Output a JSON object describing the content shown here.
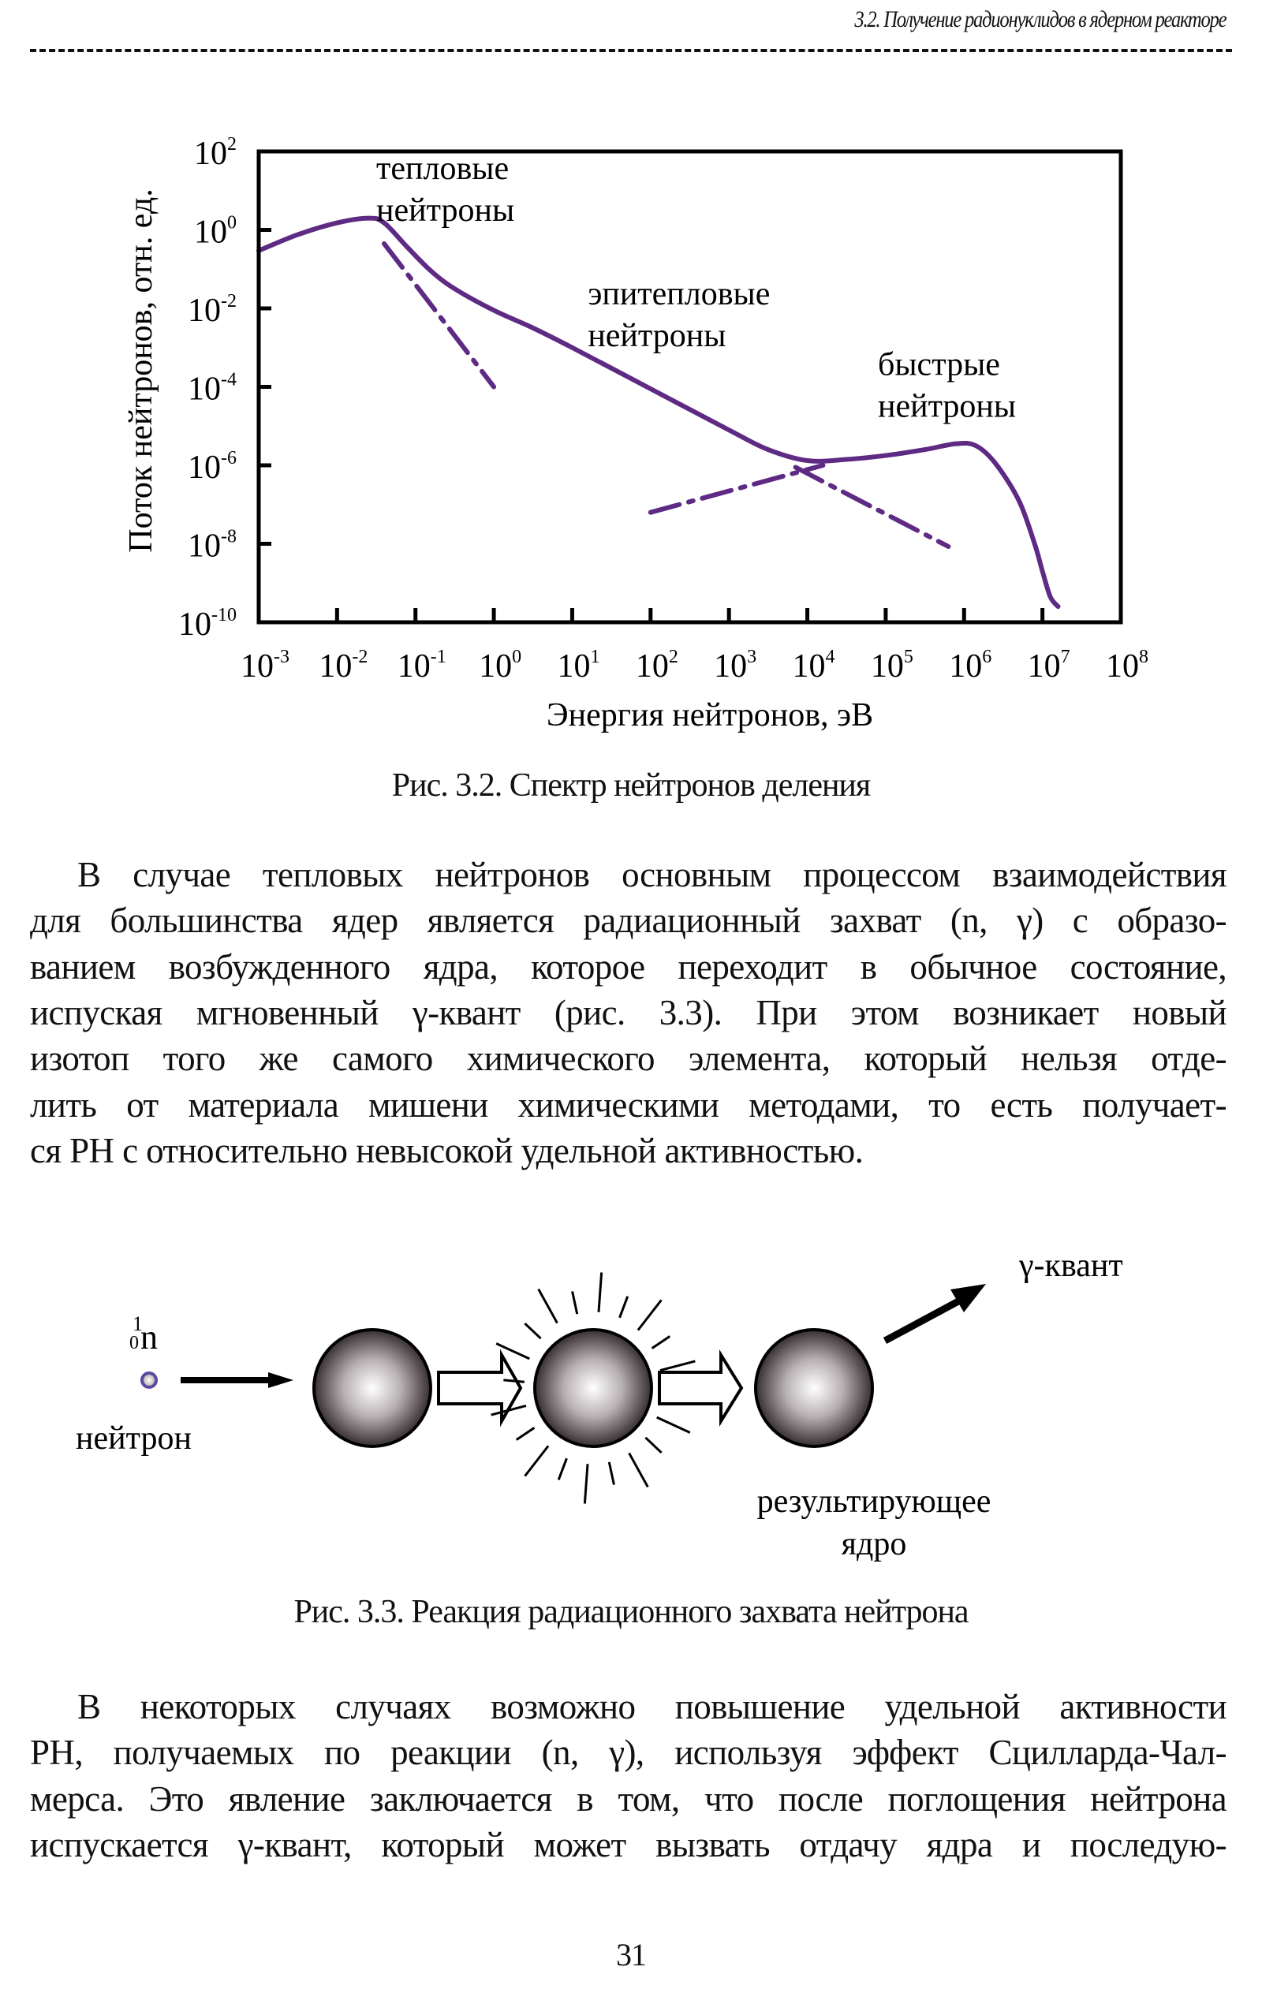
{
  "header": {
    "title": "3.2. Получение радионуклидов в ядерном реакторе"
  },
  "chart_data": {
    "type": "line",
    "title": "",
    "xlabel": "Энергия нейтронов, эВ",
    "ylabel": "Поток нейтронов, отн. ед.",
    "xscale": "log",
    "yscale": "log",
    "xlim_log10": [
      -3,
      8
    ],
    "ylim_log10": [
      -10,
      2
    ],
    "x_tick_exponents": [
      "-3",
      "-2",
      "-1",
      "0",
      "1",
      "2",
      "3",
      "4",
      "5",
      "6",
      "7",
      "8"
    ],
    "y_tick_exponents": [
      "2",
      "0",
      "-2",
      "-4",
      "-6",
      "-8",
      "-10"
    ],
    "tick_base": "10",
    "grid": false,
    "annotations": [
      {
        "lines": [
          "тепловые",
          "нейтроны"
        ],
        "at_log10": [
          -1.5,
          1.3
        ]
      },
      {
        "lines": [
          "эпитепловые",
          "нейтроны"
        ],
        "at_log10": [
          1.2,
          -1.9
        ]
      },
      {
        "lines": [
          "быстрые",
          "нейтроны"
        ],
        "at_log10": [
          4.9,
          -3.7
        ]
      }
    ],
    "series": [
      {
        "name": "spectrum",
        "style": "solid",
        "points_log10": [
          [
            -3,
            -0.53
          ],
          [
            -2.5,
            -0.12
          ],
          [
            -2,
            0.18
          ],
          [
            -1.6,
            0.3
          ],
          [
            -1.4,
            0.18
          ],
          [
            -1.1,
            -0.45
          ],
          [
            -0.8,
            -1.05
          ],
          [
            -0.5,
            -1.5
          ],
          [
            0,
            -2.05
          ],
          [
            0.5,
            -2.5
          ],
          [
            1,
            -3.0
          ],
          [
            2,
            -4.05
          ],
          [
            3,
            -5.1
          ],
          [
            3.5,
            -5.6
          ],
          [
            4,
            -5.88
          ],
          [
            4.5,
            -5.85
          ],
          [
            5,
            -5.75
          ],
          [
            5.5,
            -5.6
          ],
          [
            5.9,
            -5.45
          ],
          [
            6.15,
            -5.5
          ],
          [
            6.4,
            -5.95
          ],
          [
            6.7,
            -6.9
          ],
          [
            6.9,
            -8.0
          ],
          [
            7.0,
            -8.7
          ],
          [
            7.1,
            -9.35
          ],
          [
            7.2,
            -9.6
          ]
        ]
      },
      {
        "name": "thermal-maxwell",
        "style": "dash-dot",
        "points_log10": [
          [
            -1.4,
            -0.35
          ],
          [
            0,
            -4.0
          ]
        ]
      },
      {
        "name": "epithermal-1/E",
        "style": "dash-dot",
        "points_log10": [
          [
            3.85,
            -6.05
          ],
          [
            5.8,
            -8.07
          ]
        ]
      },
      {
        "name": "fission",
        "style": "dash-dot",
        "points_log10": [
          [
            2,
            -7.2
          ],
          [
            4.2,
            -6.0
          ]
        ]
      }
    ],
    "color": "#5e2a84"
  },
  "figure1": {
    "caption": "Рис. 3.2. Спектр нейтронов деления"
  },
  "paragraph1": {
    "lines": [
      "В случае тепловых нейтронов основным процессом взаимодействия",
      "для большинства ядер является радиационный захват (n, γ) с образо-",
      "ванием возбужденного ядра, которое переходит в обычное состояние,",
      "испуская мгновенный γ-квант (рис. 3.3). При этом возникает новый",
      "изотоп того же самого химического элемента, который нельзя отде-",
      "лить от материала мишени химическими методами, то есть получает-",
      "ся РН с относительно невысокой удельной активностью."
    ]
  },
  "figure2": {
    "neutron_symbol": "n",
    "mass_number": "1",
    "charge_number": "0",
    "neutron_label": "нейтрон",
    "gamma_label": "γ-квант",
    "result_label_1": "результирующее",
    "result_label_2": "ядро",
    "caption": "Рис. 3.3. Реакция радиационного захвата нейтрона"
  },
  "paragraph2": {
    "lines": [
      "В некоторых случаях возможно повышение удельной активности",
      "РН, получаемых по реакции (n, γ), используя эффект Сцилларда-Чал-",
      "мерса. Это явление заключается в том, что после поглощения нейтрона",
      "испускается γ-квант, который может вызвать отдачу ядра и последую-"
    ]
  },
  "footer": {
    "page_number": "31"
  }
}
